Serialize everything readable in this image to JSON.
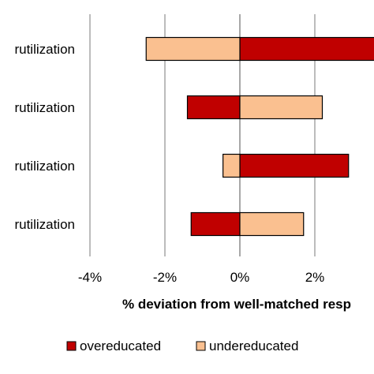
{
  "chart_data": {
    "type": "bar",
    "orientation": "horizontal",
    "categories": [
      "rutilization",
      "rutilization",
      "rutilization",
      "rutilization"
    ],
    "series": [
      {
        "name": "overeducated",
        "color": "#c00000",
        "values": [
          4.0,
          -1.4,
          2.9,
          -1.3
        ]
      },
      {
        "name": "undereducated",
        "color": "#fac090",
        "values": [
          -2.5,
          2.2,
          -0.45,
          1.7
        ]
      }
    ],
    "xlabel": "% deviation from well-matched resp",
    "xlim": [
      -4,
      4
    ],
    "xticks": [
      -4,
      -2,
      0,
      2
    ],
    "xtick_labels": [
      "-4%",
      "-2%",
      "0%",
      "2%"
    ],
    "grid": "vertical",
    "legend": {
      "position": "bottom",
      "entries": [
        "overeducated",
        "undereducated"
      ]
    }
  }
}
